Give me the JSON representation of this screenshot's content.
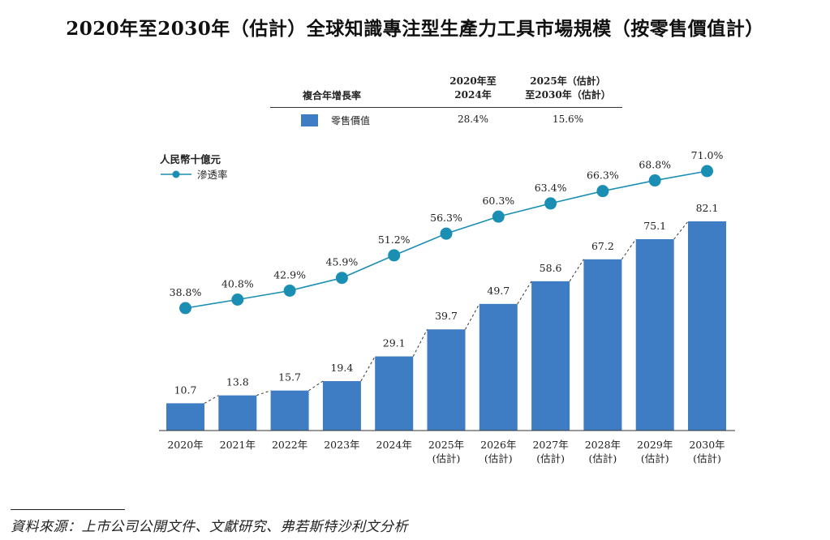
{
  "title": "2020年至2030年（估計）全球知識專注型生產力工具市場規模（按零售價值計）",
  "cagr_table": {
    "header_label": "複合年增長率",
    "col1_header_line1": "2020年至",
    "col1_header_line2": "2024年",
    "col2_header_line1": "2025年（估計）",
    "col2_header_line2": "至2030年（估計）",
    "row_label": "零售價值",
    "row_value1": "28.4%",
    "row_value2": "15.6%"
  },
  "unit_label": "人民幣十億元",
  "line_legend": "滲透率",
  "source": "資料來源：上市公司公開文件、文獻研究、弗若斯特沙利文分析",
  "colors": {
    "bar": "#3e7cc4",
    "line": "#1a8fb3",
    "marker": "#1a8fb3"
  },
  "chart_data": {
    "type": "bar",
    "categories": [
      "2020年",
      "2021年",
      "2022年",
      "2023年",
      "2024年",
      "2025年\n(估計)",
      "2026年\n(估計)",
      "2027年\n(估計)",
      "2028年\n(估計)",
      "2029年\n(估計)",
      "2030年\n(估計)"
    ],
    "category_line1": [
      "2020年",
      "2021年",
      "2022年",
      "2023年",
      "2024年",
      "2025年",
      "2026年",
      "2027年",
      "2028年",
      "2029年",
      "2030年"
    ],
    "category_line2": [
      "",
      "",
      "",
      "",
      "",
      "(估計)",
      "(估計)",
      "(估計)",
      "(估計)",
      "(估計)",
      "(估計)"
    ],
    "series": [
      {
        "name": "零售價值",
        "type": "bar",
        "values": [
          10.7,
          13.8,
          15.7,
          19.4,
          29.1,
          39.7,
          49.7,
          58.6,
          67.2,
          75.1,
          82.1
        ],
        "labels": [
          "10.7",
          "13.8",
          "15.7",
          "19.4",
          "29.1",
          "39.7",
          "49.7",
          "58.6",
          "67.2",
          "75.1",
          "82.1"
        ]
      },
      {
        "name": "滲透率",
        "type": "line",
        "values": [
          38.8,
          40.8,
          42.9,
          45.9,
          51.2,
          56.3,
          60.3,
          63.4,
          66.3,
          68.8,
          71.0
        ],
        "labels": [
          "38.8%",
          "40.8%",
          "42.9%",
          "45.9%",
          "51.2%",
          "56.3%",
          "60.3%",
          "63.4%",
          "66.3%",
          "68.8%",
          "71.0%"
        ]
      }
    ],
    "ylabel": "人民幣十億元",
    "ylim": [
      0,
      100
    ],
    "y2lim": [
      0,
      100
    ],
    "grid": false,
    "legend": "top-left"
  }
}
